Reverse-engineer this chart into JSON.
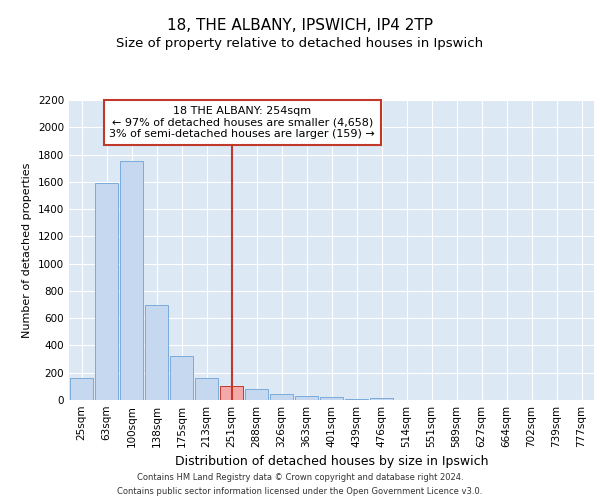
{
  "title1": "18, THE ALBANY, IPSWICH, IP4 2TP",
  "title2": "Size of property relative to detached houses in Ipswich",
  "xlabel": "Distribution of detached houses by size in Ipswich",
  "ylabel": "Number of detached properties",
  "footer1": "Contains HM Land Registry data © Crown copyright and database right 2024.",
  "footer2": "Contains public sector information licensed under the Open Government Licence v3.0.",
  "categories": [
    "25sqm",
    "63sqm",
    "100sqm",
    "138sqm",
    "175sqm",
    "213sqm",
    "251sqm",
    "288sqm",
    "326sqm",
    "363sqm",
    "401sqm",
    "439sqm",
    "476sqm",
    "514sqm",
    "551sqm",
    "589sqm",
    "627sqm",
    "664sqm",
    "702sqm",
    "739sqm",
    "777sqm"
  ],
  "values": [
    160,
    1590,
    1750,
    700,
    320,
    160,
    100,
    80,
    45,
    30,
    20,
    5,
    15,
    0,
    0,
    0,
    0,
    0,
    0,
    0,
    0
  ],
  "highlight_index": 6,
  "bar_color": "#c5d8f0",
  "bar_edge_color": "#7aabdb",
  "highlight_bar_color": "#f4a9a8",
  "highlight_bar_edge_color": "#c0392b",
  "vline_color": "#c0392b",
  "annotation_text": "18 THE ALBANY: 254sqm\n← 97% of detached houses are smaller (4,658)\n3% of semi-detached houses are larger (159) →",
  "annotation_box_facecolor": "#ffffff",
  "annotation_box_edgecolor": "#c0392b",
  "ylim": [
    0,
    2200
  ],
  "yticks": [
    0,
    200,
    400,
    600,
    800,
    1000,
    1200,
    1400,
    1600,
    1800,
    2000,
    2200
  ],
  "fig_facecolor": "#ffffff",
  "plot_facecolor": "#dde8f5",
  "grid_color": "#ffffff",
  "title1_fontsize": 11,
  "title2_fontsize": 9.5,
  "xlabel_fontsize": 9,
  "ylabel_fontsize": 8,
  "tick_fontsize": 7.5,
  "footer_fontsize": 6,
  "annotation_fontsize": 8
}
